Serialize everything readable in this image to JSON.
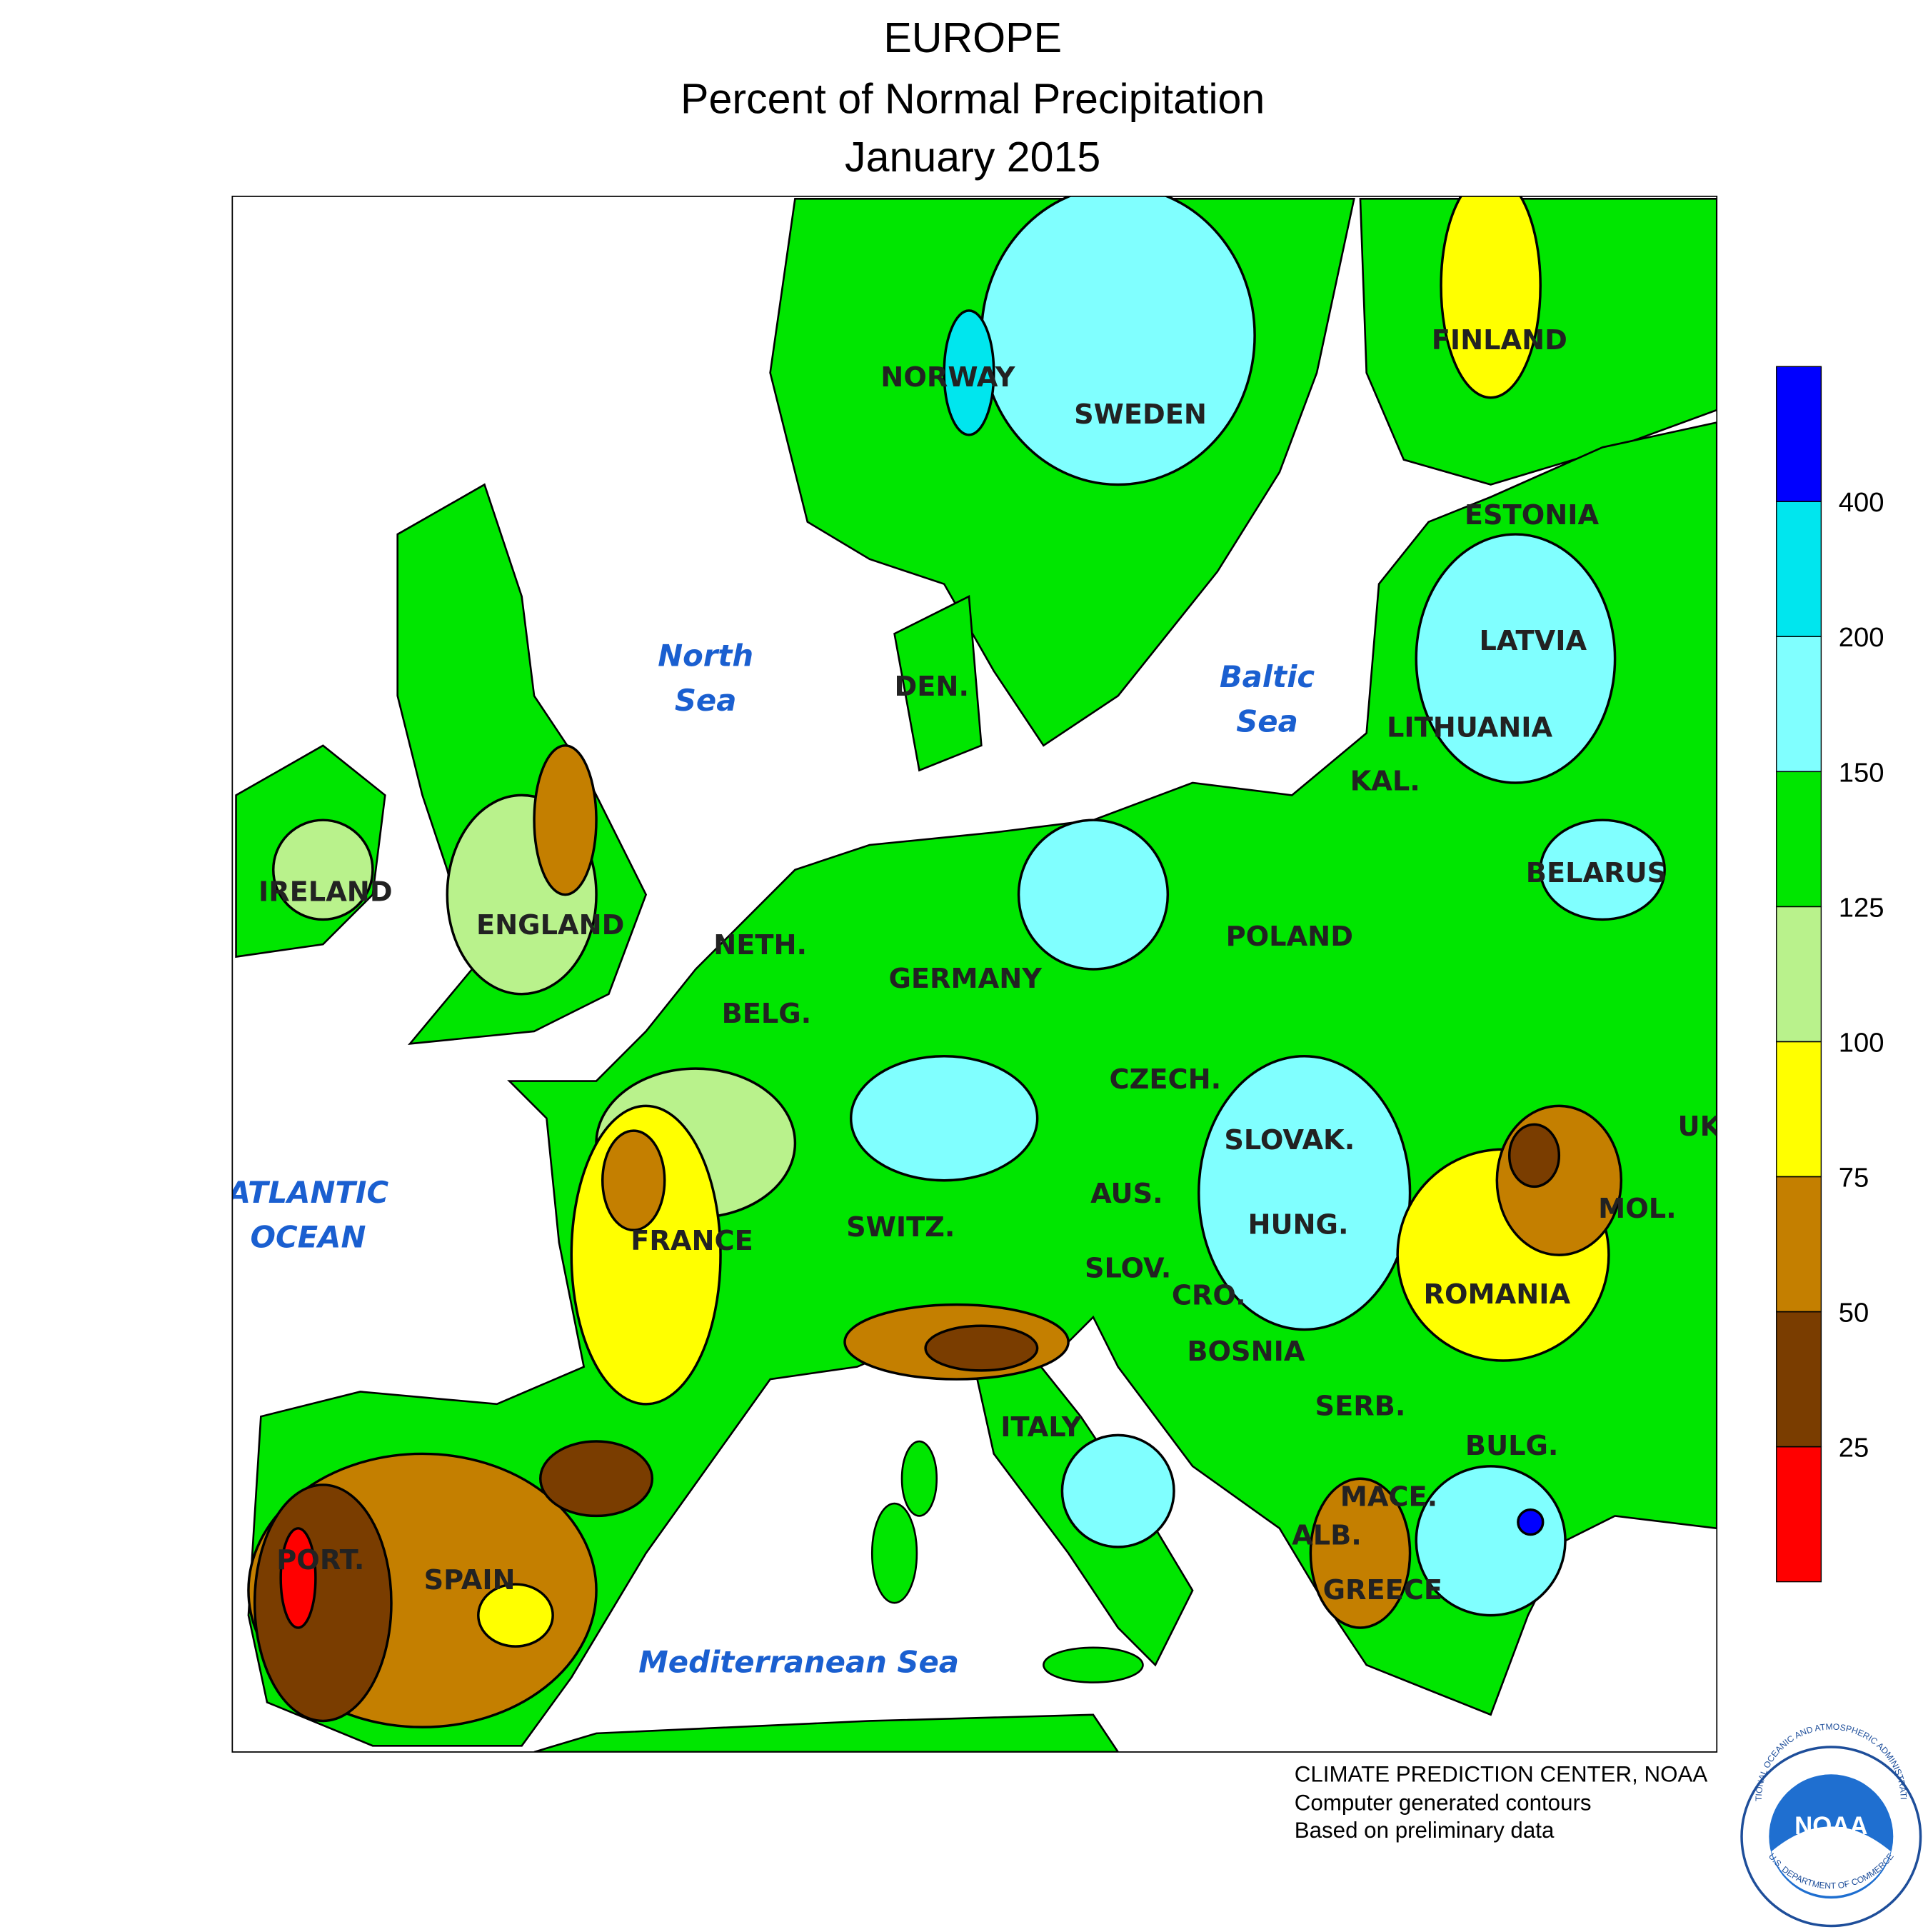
{
  "header": {
    "lines": [
      "EUROPE",
      "Percent of Normal Precipitation",
      "January 2015"
    ]
  },
  "countries": [
    "NORWAY",
    "SWEDEN",
    "FINLAND",
    "ESTONIA",
    "LATVIA",
    "LITHUANIA",
    "KAL.",
    "BELARUS",
    "POLAND",
    "IRELAND",
    "ENGLAND",
    "NETH.",
    "BELG.",
    "GERMANY",
    "DEN.",
    "CZECH.",
    "SLOVAK.",
    "UK",
    "AUS.",
    "HUNG.",
    "MOL.",
    "SWITZ.",
    "FRANCE",
    "SLOV.",
    "CRO.",
    "ROMANIA",
    "BOSNIA",
    "SERB.",
    "ITALY",
    "BULG.",
    "MACE.",
    "ALB.",
    "PORT.",
    "SPAIN",
    "GREECE"
  ],
  "seas": [
    [
      "North",
      "Sea"
    ],
    [
      "Baltic",
      "Sea"
    ],
    [
      "ATLANTIC",
      "OCEAN"
    ],
    [
      "Mediterranean Sea"
    ]
  ],
  "legend": {
    "ticks": [
      25,
      50,
      75,
      100,
      125,
      150,
      200,
      400
    ],
    "colors": [
      "#ff0000",
      "#7a3d00",
      "#c47f00",
      "#ffff00",
      "#b9f28c",
      "#00e600",
      "#80ffff",
      "#00e6ee",
      "#0000ff"
    ]
  },
  "credits": [
    "CLIMATE PREDICTION CENTER, NOAA",
    "Computer generated contours",
    "Based on preliminary data"
  ],
  "logo": {
    "name": "NOAA",
    "ring_top": "NATIONAL OCEANIC AND ATMOSPHERIC ADMINISTRATION",
    "ring_bottom": "U.S. DEPARTMENT OF COMMERCE"
  }
}
